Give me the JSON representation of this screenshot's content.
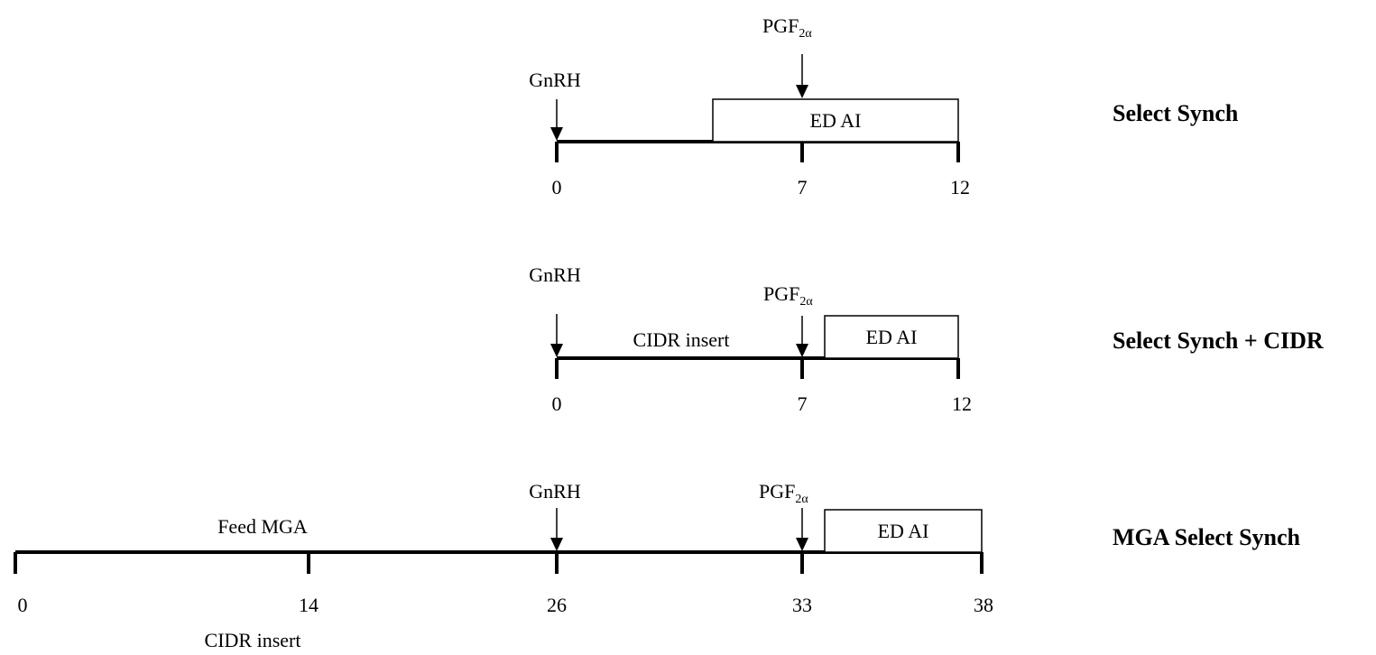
{
  "protocols": [
    {
      "title": "Select Synch",
      "ticks": [
        "0",
        "7",
        "12"
      ],
      "events": [
        {
          "label": "GnRH"
        },
        {
          "label": "PGF",
          "sub": "2α"
        }
      ],
      "segment_label": "",
      "box_label": "ED AI",
      "below_labels": []
    },
    {
      "title": "Select Synch + CIDR",
      "ticks": [
        "0",
        "7",
        "12"
      ],
      "events": [
        {
          "label": "GnRH"
        },
        {
          "label": "PGF",
          "sub": "2α"
        }
      ],
      "segment_label": "CIDR insert",
      "box_label": "ED AI",
      "below_labels": []
    },
    {
      "title": "MGA Select Synch",
      "ticks": [
        "0",
        "14",
        "26",
        "33",
        "38"
      ],
      "events": [
        {
          "label": "GnRH"
        },
        {
          "label": "PGF",
          "sub": "2α"
        }
      ],
      "segment_label": "Feed MGA",
      "box_label": "ED AI",
      "below_labels": [
        "CIDR insert"
      ]
    }
  ]
}
